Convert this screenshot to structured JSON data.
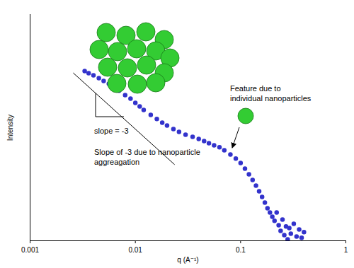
{
  "chart_data": {
    "type": "scatter",
    "x_label": "q (A⁻¹)",
    "y_label": "Intensity",
    "log": "x",
    "grid": false,
    "tick_labels": "x",
    "xlim": [
      0.001,
      1
    ],
    "xticks": [
      0.001,
      0.01,
      0.1,
      1
    ],
    "ylim": [
      0,
      100
    ],
    "yticks": [],
    "color": "#3333cc",
    "marker": "circle",
    "x": [
      0.0033,
      0.0036,
      0.004,
      0.0045,
      0.005,
      0.0056,
      0.0063,
      0.007,
      0.008,
      0.009,
      0.01,
      0.011,
      0.012,
      0.014,
      0.016,
      0.018,
      0.02,
      0.023,
      0.026,
      0.03,
      0.035,
      0.04,
      0.045,
      0.05,
      0.056,
      0.063,
      0.07,
      0.08,
      0.09,
      0.1,
      0.11,
      0.12,
      0.13,
      0.14,
      0.15,
      0.16,
      0.17,
      0.18,
      0.19,
      0.2,
      0.21,
      0.22,
      0.23,
      0.24,
      0.25,
      0.26,
      0.27,
      0.28,
      0.29,
      0.3,
      0.32,
      0.34,
      0.36,
      0.38,
      0.4
    ],
    "values": [
      75,
      74.1,
      73.1,
      71.9,
      70.6,
      69.4,
      67.8,
      66.3,
      64.4,
      62.8,
      60.9,
      59.4,
      57.8,
      55.6,
      53.8,
      52.2,
      50.9,
      49.4,
      48.1,
      46.9,
      45.9,
      45,
      44.1,
      43.1,
      42.2,
      41.3,
      40,
      38.1,
      36.3,
      34.4,
      31.9,
      29.4,
      26.9,
      24.4,
      21.9,
      19.4,
      16.9,
      14.4,
      12.5,
      10.6,
      8.8,
      12.5,
      6.9,
      4.4,
      9.4,
      2.5,
      6.3,
      0.6,
      5.6,
      3.1,
      7.5,
      1.9,
      5,
      1.3,
      3.8
    ],
    "slope_line": {
      "x": [
        0.00258,
        0.0235
      ],
      "y": [
        74.1,
        33.75
      ]
    },
    "annotations": [
      {
        "text": "slope = -3"
      },
      {
        "text": "Slope of -3 due to nanoparticle aggreagation"
      },
      {
        "text": "Feature due to individual nanoparticles"
      }
    ]
  }
}
